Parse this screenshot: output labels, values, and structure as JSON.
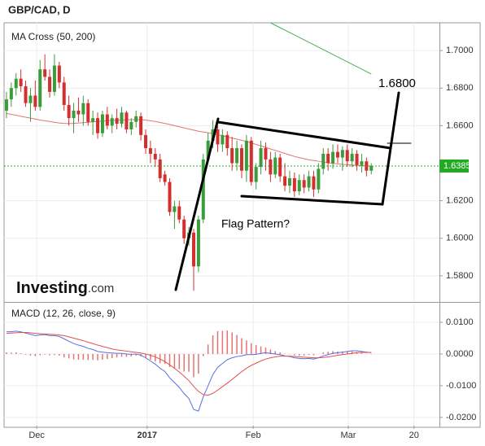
{
  "chart_data": [
    {
      "type": "candlestick",
      "title": "GBP/CAD, D",
      "subtitle": "MA Cross (50, 200)",
      "brand": {
        "name": "Investing",
        "suffix": ".com"
      },
      "annotations": [
        "1.6800",
        "Flag Pattern?"
      ],
      "up_color": "#3a9c3a",
      "down_color": "#d32f2f",
      "grid": true,
      "ylim": [
        1.5665,
        1.7148
      ],
      "yticks": [
        {
          "value": 1.58,
          "label": "1.5800"
        },
        {
          "value": 1.6,
          "label": "1.6000"
        },
        {
          "value": 1.62,
          "label": "1.6200"
        },
        {
          "value": 1.66,
          "label": "1.6600"
        },
        {
          "value": 1.68,
          "label": "1.6800"
        },
        {
          "value": 1.7,
          "label": "1.7000"
        }
      ],
      "last_price": 1.6385,
      "last_price_color": "#22aa22",
      "open": [
        1.668,
        1.674,
        1.68,
        1.685,
        1.681,
        1.672,
        1.676,
        1.67,
        1.69,
        1.686,
        1.678,
        1.692,
        1.683,
        1.671,
        1.664,
        1.668,
        1.666,
        1.672,
        1.662,
        1.664,
        1.656,
        1.666,
        1.66,
        1.664,
        1.661,
        1.667,
        1.658,
        1.662,
        1.665,
        1.655,
        1.648,
        1.645,
        1.642,
        1.634,
        1.63,
        1.614,
        1.617,
        1.61,
        1.6,
        1.603,
        1.585,
        1.61,
        1.642,
        1.652,
        1.658,
        1.65,
        1.655,
        1.648,
        1.64,
        1.648,
        1.636,
        1.652,
        1.63,
        1.638,
        1.648,
        1.642,
        1.634,
        1.643,
        1.633,
        1.628,
        1.632,
        1.625,
        1.631,
        1.627,
        1.633,
        1.626,
        1.637,
        1.645,
        1.64,
        1.646,
        1.643,
        1.647,
        1.641,
        1.645,
        1.639,
        1.641,
        1.636
      ],
      "high": [
        1.678,
        1.683,
        1.688,
        1.69,
        1.684,
        1.68,
        1.684,
        1.695,
        1.698,
        1.69,
        1.698,
        1.694,
        1.686,
        1.676,
        1.672,
        1.675,
        1.676,
        1.674,
        1.668,
        1.667,
        1.668,
        1.67,
        1.666,
        1.669,
        1.67,
        1.668,
        1.664,
        1.668,
        1.667,
        1.658,
        1.652,
        1.648,
        1.645,
        1.636,
        1.632,
        1.62,
        1.62,
        1.612,
        1.606,
        1.605,
        1.612,
        1.645,
        1.656,
        1.663,
        1.66,
        1.658,
        1.657,
        1.654,
        1.652,
        1.65,
        1.655,
        1.654,
        1.64,
        1.652,
        1.651,
        1.646,
        1.646,
        1.645,
        1.64,
        1.636,
        1.635,
        1.634,
        1.634,
        1.636,
        1.636,
        1.64,
        1.648,
        1.648,
        1.65,
        1.65,
        1.649,
        1.65,
        1.648,
        1.647,
        1.645,
        1.643,
        1.64
      ],
      "low": [
        1.664,
        1.67,
        1.676,
        1.678,
        1.67,
        1.662,
        1.668,
        1.668,
        1.684,
        1.675,
        1.676,
        1.68,
        1.668,
        1.66,
        1.656,
        1.662,
        1.66,
        1.66,
        1.655,
        1.653,
        1.654,
        1.658,
        1.656,
        1.658,
        1.659,
        1.656,
        1.655,
        1.659,
        1.652,
        1.645,
        1.64,
        1.638,
        1.63,
        1.628,
        1.612,
        1.605,
        1.608,
        1.597,
        1.596,
        1.572,
        1.582,
        1.608,
        1.64,
        1.648,
        1.646,
        1.646,
        1.644,
        1.636,
        1.636,
        1.632,
        1.63,
        1.628,
        1.626,
        1.634,
        1.636,
        1.63,
        1.632,
        1.63,
        1.625,
        1.624,
        1.622,
        1.623,
        1.624,
        1.625,
        1.622,
        1.624,
        1.634,
        1.636,
        1.637,
        1.64,
        1.636,
        1.638,
        1.638,
        1.636,
        1.635,
        1.633,
        1.634
      ],
      "close": [
        1.674,
        1.68,
        1.685,
        1.681,
        1.672,
        1.676,
        1.67,
        1.69,
        1.686,
        1.678,
        1.692,
        1.683,
        1.671,
        1.664,
        1.668,
        1.666,
        1.672,
        1.662,
        1.664,
        1.656,
        1.666,
        1.66,
        1.664,
        1.661,
        1.667,
        1.658,
        1.662,
        1.665,
        1.655,
        1.648,
        1.645,
        1.642,
        1.632,
        1.63,
        1.614,
        1.617,
        1.61,
        1.6,
        1.603,
        1.585,
        1.61,
        1.642,
        1.652,
        1.658,
        1.65,
        1.655,
        1.648,
        1.64,
        1.648,
        1.636,
        1.652,
        1.63,
        1.638,
        1.648,
        1.642,
        1.634,
        1.643,
        1.633,
        1.628,
        1.632,
        1.625,
        1.631,
        1.627,
        1.633,
        1.626,
        1.637,
        1.645,
        1.64,
        1.646,
        1.643,
        1.647,
        1.641,
        1.645,
        1.639,
        1.641,
        1.636,
        1.6385
      ],
      "series": [
        {
          "color": "#e57373",
          "values": [
            1.6665,
            1.666,
            1.6655,
            1.665,
            1.6645,
            1.664,
            1.6635,
            1.663,
            1.6626,
            1.6622,
            1.6618,
            1.6614,
            1.6612,
            1.6611,
            1.6612,
            1.6614,
            1.6616,
            1.6618,
            1.662,
            1.6622,
            1.6624,
            1.6626,
            1.6628,
            1.6629,
            1.663,
            1.6631,
            1.6632,
            1.6632,
            1.6632,
            1.663,
            1.6626,
            1.6622,
            1.6617,
            1.6612,
            1.6606,
            1.66,
            1.6594,
            1.6588,
            1.6582,
            1.6576,
            1.657,
            1.6566,
            1.6562,
            1.6558,
            1.6552,
            1.6546,
            1.654,
            1.6534,
            1.6528,
            1.6522,
            1.6516,
            1.6508,
            1.65,
            1.6492,
            1.6484,
            1.6476,
            1.6468,
            1.646,
            1.6452,
            1.6444,
            1.6436,
            1.643,
            1.6424,
            1.6418,
            1.6414,
            1.641,
            1.6406,
            1.6402,
            1.6399,
            1.6396,
            1.6394,
            1.6392,
            1.639,
            1.6388,
            1.6387,
            1.6386,
            1.6385
          ]
        },
        {
          "color": "#4caf50",
          "values": [
            null,
            null,
            null,
            null,
            null,
            null,
            null,
            null,
            null,
            null,
            null,
            null,
            null,
            null,
            null,
            null,
            null,
            null,
            null,
            null,
            null,
            null,
            null,
            null,
            null,
            null,
            null,
            null,
            null,
            null,
            null,
            null,
            null,
            null,
            null,
            null,
            null,
            null,
            null,
            null,
            null,
            null,
            null,
            null,
            null,
            null,
            null,
            null,
            null,
            null,
            null,
            null,
            null,
            1.7174,
            1.7161,
            1.7148,
            1.7135,
            1.7122,
            1.7109,
            1.7096,
            1.7083,
            1.707,
            1.7057,
            1.7044,
            1.7031,
            1.7018,
            1.7005,
            1.6992,
            1.6979,
            1.6966,
            1.6953,
            1.694,
            1.6927,
            1.6914,
            1.6901,
            1.6888,
            1.6875
          ]
        }
      ]
    },
    {
      "type": "macd",
      "title": "MACD (12, 26, close, 9)",
      "grid": true,
      "xlim": [
        -0.5,
        90.2
      ],
      "xticks": [
        {
          "value": 6.3,
          "label": "Dec"
        },
        {
          "value": 29.3,
          "label": "2017"
        },
        {
          "value": 51.4,
          "label": "Feb"
        },
        {
          "value": 71.2,
          "label": "Mar"
        },
        {
          "value": 84.9,
          "label": "20"
        }
      ],
      "ylim": [
        -0.0226,
        0.0159
      ],
      "yticks": [
        {
          "value": -0.02,
          "label": "-0.0200"
        },
        {
          "value": -0.01,
          "label": "-0.0100"
        },
        {
          "value": 0,
          "label": "0.0000"
        },
        {
          "value": 0.01,
          "label": "0.0100"
        }
      ],
      "series": [
        {
          "color": "#5b6ee1",
          "values": [
            0.007,
            0.007,
            0.0072,
            0.007,
            0.0066,
            0.0062,
            0.0058,
            0.006,
            0.0061,
            0.0058,
            0.0058,
            0.0055,
            0.0048,
            0.004,
            0.0033,
            0.0028,
            0.0024,
            0.0018,
            0.0014,
            0.0008,
            0.0006,
            0.0004,
            0.0003,
            0.0002,
            0.0002,
            0.0,
            -0.0001,
            0.0,
            -0.0004,
            -0.0012,
            -0.0022,
            -0.0032,
            -0.0045,
            -0.0055,
            -0.0075,
            -0.009,
            -0.0105,
            -0.0125,
            -0.014,
            -0.0175,
            -0.018,
            -0.0135,
            -0.01,
            -0.0065,
            -0.0042,
            -0.003,
            -0.0018,
            -0.0012,
            -0.0008,
            -0.0006,
            -0.0002,
            -0.0002,
            -0.0001,
            0.0002,
            0.0004,
            0.0002,
            0.0,
            -0.0002,
            -0.0006,
            -0.0008,
            -0.0012,
            -0.0014,
            -0.0015,
            -0.0014,
            -0.0016,
            -0.0012,
            -0.0006,
            -0.0002,
            0.0002,
            0.0004,
            0.0006,
            0.0008,
            0.001,
            0.001,
            0.0008,
            0.0006,
            0.0004
          ]
        },
        {
          "color": "#e05050",
          "values": [
            0.0065,
            0.0066,
            0.0067,
            0.0068,
            0.0068,
            0.0067,
            0.0065,
            0.0064,
            0.0063,
            0.0062,
            0.0061,
            0.006,
            0.0058,
            0.0054,
            0.005,
            0.0046,
            0.0042,
            0.0037,
            0.0033,
            0.0028,
            0.0024,
            0.002,
            0.0016,
            0.0013,
            0.0011,
            0.0009,
            0.0007,
            0.0005,
            0.0003,
            0.0,
            -0.0004,
            -0.0009,
            -0.0016,
            -0.0024,
            -0.0034,
            -0.0045,
            -0.0057,
            -0.007,
            -0.0084,
            -0.0102,
            -0.0118,
            -0.0128,
            -0.013,
            -0.0124,
            -0.0114,
            -0.0103,
            -0.0092,
            -0.008,
            -0.0068,
            -0.0056,
            -0.0045,
            -0.0036,
            -0.0029,
            -0.0022,
            -0.0016,
            -0.0012,
            -0.0009,
            -0.0007,
            -0.0007,
            -0.0007,
            -0.0008,
            -0.0009,
            -0.001,
            -0.0011,
            -0.0012,
            -0.0012,
            -0.0011,
            -0.0009,
            -0.0007,
            -0.0004,
            -0.0002,
            0.0,
            0.0002,
            0.0004,
            0.0005,
            0.0005,
            0.0005
          ]
        }
      ],
      "histogram": {
        "color": "#e57373",
        "values": [
          0.0005,
          0.0004,
          0.0005,
          0.0002,
          -0.0002,
          -0.0005,
          -0.0007,
          -0.0004,
          -0.0002,
          -0.0004,
          -0.0003,
          -0.0005,
          -0.001,
          -0.0014,
          -0.0017,
          -0.0018,
          -0.0018,
          -0.0019,
          -0.0019,
          -0.002,
          -0.0018,
          -0.0016,
          -0.0013,
          -0.0011,
          -0.0009,
          -0.0009,
          -0.0008,
          -0.0005,
          -0.0007,
          -0.0012,
          -0.0018,
          -0.0023,
          -0.0029,
          -0.0031,
          -0.0041,
          -0.0045,
          -0.0048,
          -0.0055,
          -0.0056,
          -0.0073,
          -0.0062,
          -0.0007,
          0.003,
          0.0059,
          0.0072,
          0.0073,
          0.0074,
          0.0068,
          0.006,
          0.005,
          0.0043,
          0.0034,
          0.0028,
          0.0024,
          0.002,
          0.0014,
          0.0009,
          0.0005,
          0.0001,
          -0.0001,
          -0.0004,
          -0.0005,
          -0.0005,
          -0.0003,
          -0.0004,
          0.0,
          0.0005,
          0.0007,
          0.0009,
          0.0008,
          0.0008,
          0.0008,
          0.0008,
          0.0006,
          0.0003,
          0.0001,
          -0.0001
        ]
      }
    }
  ]
}
